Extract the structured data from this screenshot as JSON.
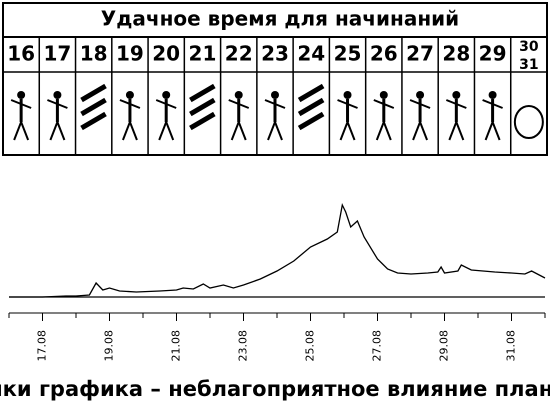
{
  "header": {
    "title": "Удачное время для начинаний",
    "days": [
      "16",
      "17",
      "18",
      "19",
      "20",
      "21",
      "22",
      "23",
      "24",
      "25",
      "26",
      "27",
      "28",
      "29"
    ],
    "last_cell": [
      "30",
      "31"
    ]
  },
  "chart_data": {
    "type": "line",
    "x": [
      16.0,
      17.0,
      17.7,
      18.0,
      18.4,
      18.6,
      18.8,
      19.0,
      19.3,
      19.8,
      20.5,
      21.0,
      21.2,
      21.5,
      21.8,
      22.0,
      22.4,
      22.7,
      23.0,
      23.5,
      24.0,
      24.5,
      25.0,
      25.5,
      25.8,
      25.95,
      26.05,
      26.2,
      26.4,
      26.6,
      27.0,
      27.3,
      27.6,
      28.0,
      28.5,
      28.8,
      28.9,
      29.0,
      29.4,
      29.5,
      29.8,
      30.5,
      31.0,
      31.4,
      31.6,
      32.0
    ],
    "values": [
      0,
      0,
      1,
      1,
      2,
      14,
      7,
      9,
      6,
      5,
      6,
      7,
      9,
      8,
      13,
      9,
      12,
      9,
      12,
      18,
      26,
      36,
      50,
      58,
      65,
      92,
      85,
      70,
      76,
      60,
      38,
      28,
      24,
      23,
      24,
      25,
      30,
      24,
      26,
      32,
      27,
      25,
      24,
      23,
      26,
      19
    ],
    "color": "#000000",
    "xlim": [
      16,
      32
    ],
    "ylim": [
      0,
      100
    ],
    "xticks": [
      {
        "value": 17,
        "label": "17.08"
      },
      {
        "value": 19,
        "label": "19.08"
      },
      {
        "value": 21,
        "label": "21.08"
      },
      {
        "value": 23,
        "label": "23.08"
      },
      {
        "value": 25,
        "label": "25.08"
      },
      {
        "value": 27,
        "label": "27.08"
      },
      {
        "value": 29,
        "label": "29.08"
      },
      {
        "value": 31,
        "label": "31.08"
      }
    ],
    "xminorticks": [
      16,
      18,
      20,
      22,
      24,
      26,
      28,
      30,
      32
    ],
    "caption": "Пики графика – неблагоприятное влияние планет"
  }
}
